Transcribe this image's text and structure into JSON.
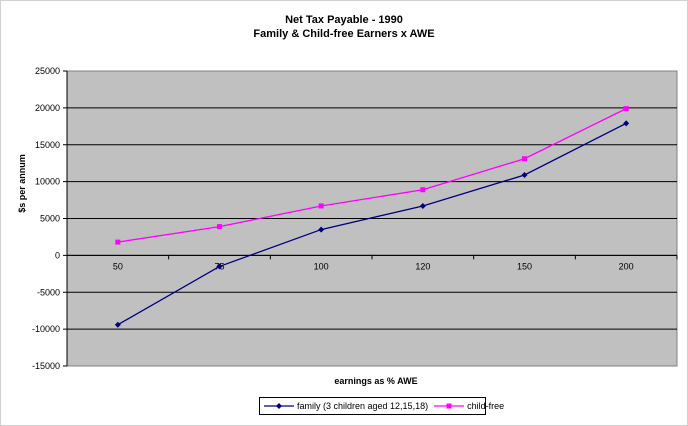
{
  "chart_data": {
    "type": "line",
    "title": "Net Tax Payable - 1990",
    "subtitle": "Family & Child-free Earners x AWE",
    "xlabel": "earnings as % AWE",
    "ylabel": "$s per annum",
    "categories": [
      "50",
      "75",
      "100",
      "120",
      "150",
      "200"
    ],
    "ylim": [
      -15000,
      25000
    ],
    "yticks": [
      25000,
      20000,
      15000,
      10000,
      5000,
      0,
      -5000,
      -10000,
      -15000
    ],
    "grid": true,
    "plot_background": "#c0c0c0",
    "legend_position": "bottom",
    "series": [
      {
        "name": "family (3 children aged 12,15,18)",
        "values": [
          -9400,
          -1500,
          3500,
          6700,
          10900,
          17900
        ],
        "color": "#000080",
        "marker": "diamond"
      },
      {
        "name": "child-free",
        "values": [
          1800,
          3900,
          6700,
          8900,
          13100,
          19900
        ],
        "color": "#ff00ff",
        "marker": "square"
      }
    ]
  }
}
